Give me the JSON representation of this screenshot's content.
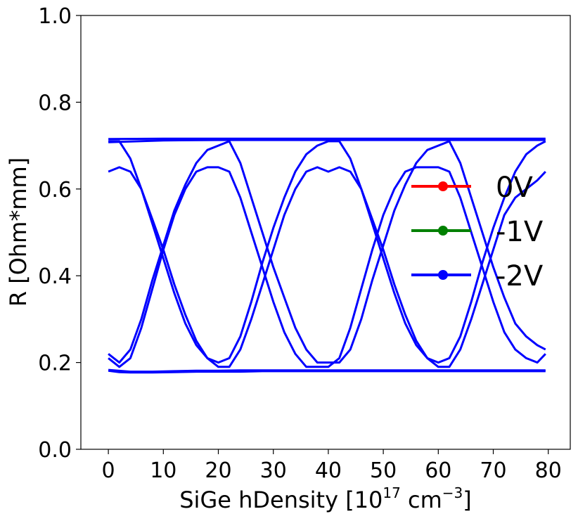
{
  "chart_data": {
    "type": "line",
    "xlabel": {
      "prefix": "SiGe hDensity [10",
      "exp1": "17",
      "middle": " cm",
      "exp2": "−3",
      "suffix": "]"
    },
    "ylabel": "R [Ohm*mm]",
    "xlim": [
      -5,
      84
    ],
    "ylim": [
      0,
      1.0
    ],
    "xticks": [
      0,
      10,
      20,
      30,
      40,
      50,
      60,
      70,
      80
    ],
    "xtick_labels": [
      "0",
      "10",
      "20",
      "30",
      "40",
      "50",
      "60",
      "70",
      "80"
    ],
    "yticks": [
      0.0,
      0.2,
      0.4,
      0.6,
      0.8,
      1.0
    ],
    "ytick_labels": [
      "0.0",
      "0.2",
      "0.4",
      "0.6",
      "0.8",
      "1.0"
    ],
    "legend": {
      "placement": "center-right",
      "entries": [
        {
          "label": "0V",
          "color": "#ff0000"
        },
        {
          "label": "-1V",
          "color": "#008000"
        },
        {
          "label": "-2V",
          "color": "#0000ff"
        }
      ]
    },
    "line_color": "#0000ff",
    "series": [
      {
        "x": [
          0,
          2,
          4,
          6,
          8,
          10,
          12,
          14,
          16,
          18,
          20,
          22,
          24,
          26,
          28,
          30,
          32,
          34,
          36,
          38,
          40,
          42,
          44,
          46,
          48,
          50,
          52,
          54,
          56,
          58,
          60,
          62,
          64,
          66,
          68,
          70,
          72,
          74,
          76,
          78,
          79.5
        ],
        "y": [
          0.64,
          0.65,
          0.64,
          0.6,
          0.53,
          0.46,
          0.38,
          0.31,
          0.25,
          0.21,
          0.19,
          0.19,
          0.23,
          0.3,
          0.38,
          0.46,
          0.54,
          0.6,
          0.64,
          0.65,
          0.64,
          0.65,
          0.64,
          0.6,
          0.53,
          0.46,
          0.38,
          0.31,
          0.25,
          0.21,
          0.19,
          0.19,
          0.23,
          0.3,
          0.38,
          0.46,
          0.54,
          0.58,
          0.6,
          0.62,
          0.64
        ]
      },
      {
        "x": [
          0,
          2,
          4,
          6,
          8,
          10,
          12,
          14,
          16,
          18,
          20,
          22,
          24,
          26,
          28,
          30,
          32,
          34,
          36,
          38,
          40,
          42,
          44,
          46,
          48,
          50,
          52,
          54,
          56,
          58,
          60,
          62,
          64,
          66,
          68,
          70,
          72,
          74,
          76,
          78,
          79.5
        ],
        "y": [
          0.71,
          0.71,
          0.67,
          0.6,
          0.52,
          0.44,
          0.36,
          0.29,
          0.24,
          0.21,
          0.2,
          0.21,
          0.26,
          0.34,
          0.43,
          0.51,
          0.58,
          0.64,
          0.68,
          0.7,
          0.71,
          0.71,
          0.67,
          0.6,
          0.52,
          0.44,
          0.36,
          0.29,
          0.24,
          0.21,
          0.2,
          0.21,
          0.26,
          0.34,
          0.43,
          0.51,
          0.58,
          0.64,
          0.68,
          0.7,
          0.71
        ]
      },
      {
        "x": [
          0,
          2,
          4,
          6,
          8,
          10,
          12,
          14,
          16,
          18,
          20,
          22,
          24,
          26,
          28,
          30,
          32,
          34,
          36,
          38,
          40,
          42,
          44,
          46,
          48,
          50,
          52,
          54,
          56,
          58,
          60,
          62,
          64,
          66,
          68,
          70,
          72,
          74,
          76,
          78,
          79.5
        ],
        "y": [
          0.21,
          0.19,
          0.21,
          0.28,
          0.37,
          0.46,
          0.54,
          0.6,
          0.64,
          0.65,
          0.65,
          0.64,
          0.58,
          0.5,
          0.42,
          0.34,
          0.27,
          0.22,
          0.19,
          0.19,
          0.19,
          0.21,
          0.28,
          0.37,
          0.46,
          0.54,
          0.6,
          0.64,
          0.65,
          0.65,
          0.65,
          0.64,
          0.58,
          0.5,
          0.42,
          0.34,
          0.27,
          0.23,
          0.21,
          0.2,
          0.22
        ]
      },
      {
        "x": [
          0,
          2,
          4,
          6,
          8,
          10,
          12,
          14,
          16,
          18,
          20,
          22,
          24,
          26,
          28,
          30,
          32,
          34,
          36,
          38,
          40,
          42,
          44,
          46,
          48,
          50,
          52,
          54,
          56,
          58,
          60,
          62,
          64,
          66,
          68,
          70,
          72,
          74,
          76,
          78,
          79.5
        ],
        "y": [
          0.22,
          0.2,
          0.23,
          0.3,
          0.39,
          0.47,
          0.55,
          0.61,
          0.66,
          0.69,
          0.7,
          0.71,
          0.66,
          0.58,
          0.5,
          0.42,
          0.35,
          0.28,
          0.23,
          0.2,
          0.2,
          0.2,
          0.23,
          0.3,
          0.39,
          0.47,
          0.55,
          0.61,
          0.66,
          0.69,
          0.7,
          0.71,
          0.66,
          0.58,
          0.5,
          0.42,
          0.35,
          0.29,
          0.26,
          0.24,
          0.23
        ]
      },
      {
        "x": [
          0,
          10,
          20,
          30,
          40,
          50,
          60,
          70,
          79.5
        ],
        "y": [
          0.715,
          0.716,
          0.716,
          0.716,
          0.716,
          0.716,
          0.716,
          0.716,
          0.716
        ]
      },
      {
        "x": [
          0,
          10,
          20,
          30,
          40,
          50,
          60,
          70,
          79.5
        ],
        "y": [
          0.708,
          0.712,
          0.713,
          0.713,
          0.713,
          0.713,
          0.713,
          0.713,
          0.713
        ]
      },
      {
        "x": [
          0,
          2,
          4,
          8,
          12,
          16,
          20,
          24,
          28,
          32,
          36,
          40,
          44,
          48,
          52,
          56,
          60,
          64,
          68,
          72,
          76,
          79.5
        ],
        "y": [
          0.181,
          0.178,
          0.177,
          0.177,
          0.178,
          0.179,
          0.179,
          0.179,
          0.18,
          0.18,
          0.18,
          0.18,
          0.18,
          0.18,
          0.18,
          0.18,
          0.18,
          0.18,
          0.18,
          0.18,
          0.18,
          0.18
        ]
      },
      {
        "x": [
          0,
          4,
          8,
          12,
          16,
          20,
          24,
          28,
          32,
          36,
          40,
          44,
          48,
          52,
          56,
          60,
          64,
          68,
          72,
          76,
          79.5
        ],
        "y": [
          0.183,
          0.179,
          0.179,
          0.18,
          0.181,
          0.181,
          0.182,
          0.182,
          0.182,
          0.182,
          0.182,
          0.182,
          0.182,
          0.182,
          0.182,
          0.182,
          0.182,
          0.182,
          0.182,
          0.182,
          0.182
        ]
      }
    ]
  }
}
